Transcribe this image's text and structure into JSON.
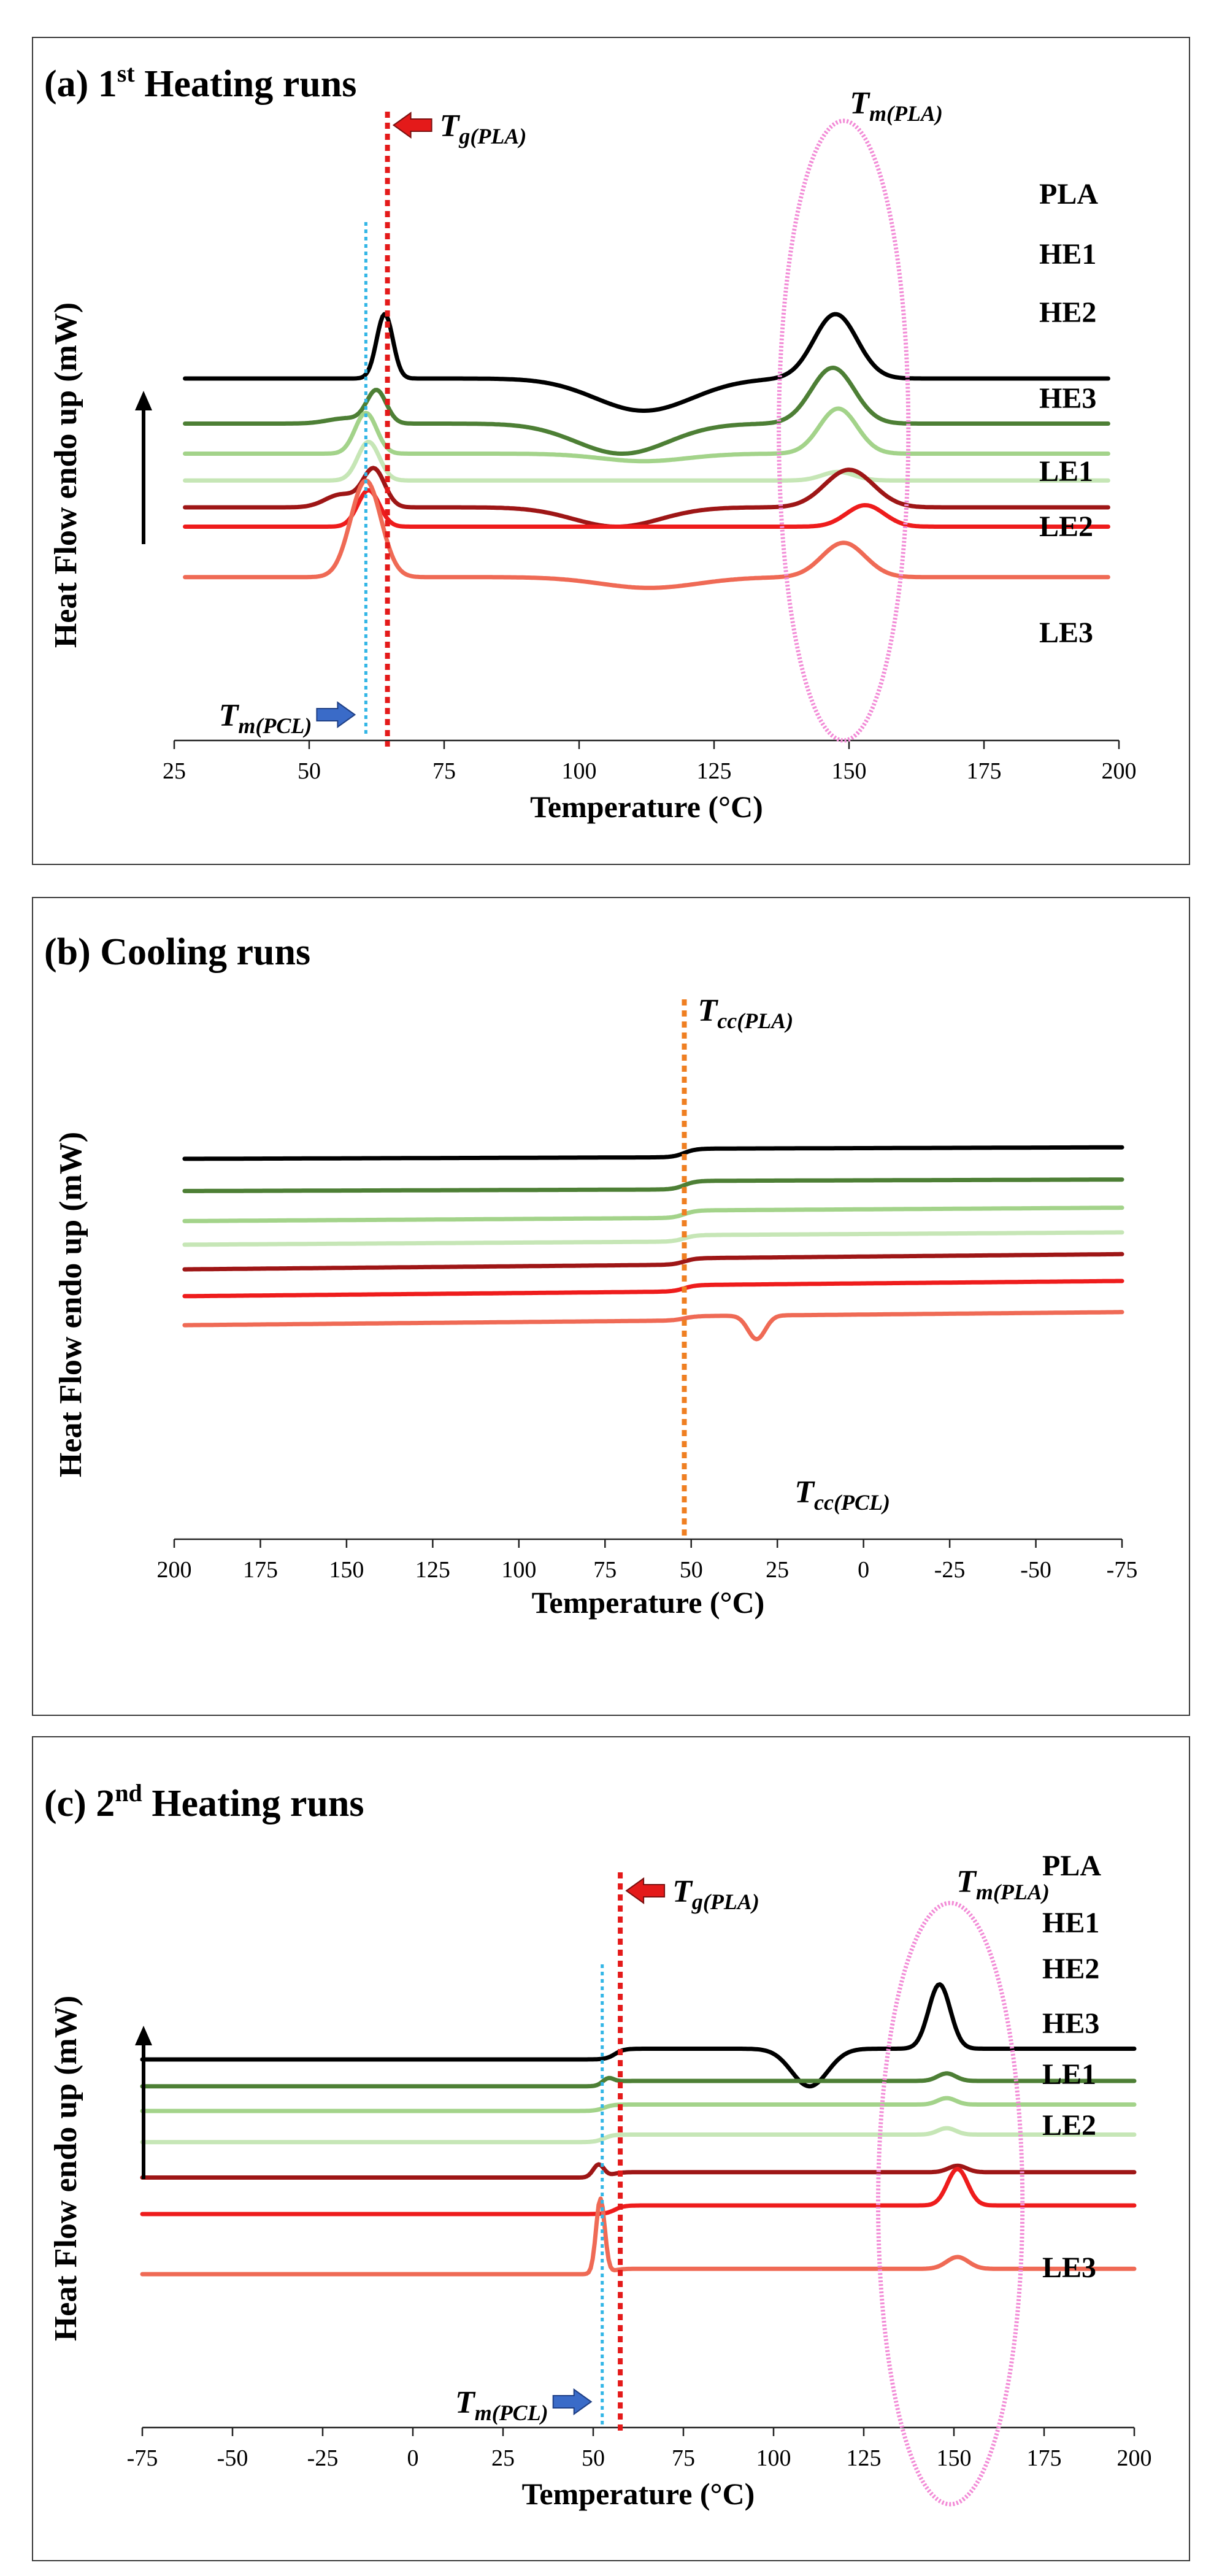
{
  "figure": {
    "background": "#ffffff",
    "border_color": "#3a3a3a"
  },
  "colors": {
    "PLA": "#000000",
    "HE1": "#4d7f35",
    "HE2": "#a3d38a",
    "HE3": "#c6e6b6",
    "LE1": "#9e1616",
    "LE2": "#ee1c1c",
    "LE3": "#ef6a55",
    "tg_line": "#e41a1a",
    "tm_pcl_line": "#33b6e6",
    "tcc_line": "#ef7f22",
    "ellipse": "#f28ad6",
    "arrow_red": "#e41a1a",
    "arrow_blue": "#3a6bc8"
  },
  "chart_data": [
    {
      "type": "line",
      "panel_id": "a",
      "title_prefix": "(a) 1",
      "title_sup": "st",
      "title_suffix": " Heating runs",
      "xlabel": "Temperature (°C)",
      "ylabel": "Heat Flow endo up (mW)",
      "xlim": [
        25,
        200
      ],
      "xticks": [
        25,
        50,
        75,
        100,
        125,
        150,
        175,
        200
      ],
      "grid": false,
      "annotations": {
        "tg_main": "T",
        "tg_sub": "g(PLA)",
        "tm_main": "T",
        "tm_sub": "m(PLA)",
        "tmpcl_main": "T",
        "tmpcl_sub": "m(PCL)"
      },
      "ref_lines": {
        "tg": 64.5,
        "tm_pcl": 60.5
      },
      "ellipse": {
        "x_center": 149,
        "x_halfwidth": 12
      },
      "series": [
        {
          "name": "PLA",
          "label": "PLA",
          "baseline": 100,
          "x0": 27,
          "x1": 198,
          "slope": 0.0,
          "features": [
            {
              "c": 64,
              "h": 60,
              "w": 1.5
            },
            {
              "c": 112,
              "h": -30,
              "w": 9
            },
            {
              "c": 147.5,
              "h": 60,
              "w": 4
            }
          ]
        },
        {
          "name": "HE1",
          "label": "HE1",
          "baseline": 58,
          "x0": 27,
          "x1": 198,
          "slope": 0.0,
          "features": [
            {
              "c": 57,
              "h": 5,
              "w": 3.5
            },
            {
              "c": 62.5,
              "h": 30,
              "w": 1.8
            },
            {
              "c": 108,
              "h": -28,
              "w": 8.5
            },
            {
              "c": 147,
              "h": 52,
              "w": 4
            }
          ]
        },
        {
          "name": "HE2",
          "label": "HE2",
          "baseline": 30,
          "x0": 27,
          "x1": 198,
          "slope": 0.0,
          "features": [
            {
              "c": 60.5,
              "h": 38,
              "w": 2
            },
            {
              "c": 112,
              "h": -7,
              "w": 8
            },
            {
              "c": 148,
              "h": 42,
              "w": 3.5
            }
          ]
        },
        {
          "name": "HE3",
          "label": "HE3",
          "baseline": 5,
          "x0": 27,
          "x1": 198,
          "slope": 0.0,
          "features": [
            {
              "c": 61,
              "h": 36,
              "w": 2
            },
            {
              "c": 148,
              "h": 8,
              "w": 3
            }
          ]
        },
        {
          "name": "LE1",
          "label": "LE1",
          "baseline": -20,
          "x0": 27,
          "x1": 198,
          "slope": 0.0,
          "features": [
            {
              "c": 56,
              "h": 12,
              "w": 3
            },
            {
              "c": 62,
              "h": 35,
              "w": 2
            },
            {
              "c": 107,
              "h": -18,
              "w": 8
            },
            {
              "c": 150,
              "h": 35,
              "w": 4.5
            }
          ]
        },
        {
          "name": "LE2",
          "label": "LE2",
          "baseline": -38,
          "x0": 27,
          "x1": 198,
          "slope": 0.0,
          "features": [
            {
              "c": 61,
              "h": 34,
              "w": 2
            },
            {
              "c": 153,
              "h": 20,
              "w": 3.5
            }
          ]
        },
        {
          "name": "LE3",
          "label": "LE3",
          "baseline": -85,
          "x0": 27,
          "x1": 198,
          "slope": 0.0,
          "features": [
            {
              "c": 60.5,
              "h": 90,
              "w": 2.8
            },
            {
              "c": 113,
              "h": -10,
              "w": 9
            },
            {
              "c": 149,
              "h": 32,
              "w": 4
            }
          ]
        }
      ]
    },
    {
      "type": "line",
      "panel_id": "b",
      "title_prefix": "(b) Cooling runs",
      "title_sup": "",
      "title_suffix": "",
      "xlabel": "Temperature (°C)",
      "ylabel": "Heat Flow endo up (mW)",
      "xlim": [
        200,
        -75
      ],
      "xticks": [
        200,
        175,
        150,
        125,
        100,
        75,
        50,
        25,
        0,
        -25,
        -50,
        -75
      ],
      "grid": false,
      "annotations": {
        "tcc_main": "T",
        "tcc_sub": "cc(PLA)",
        "tccpcl_main": "T",
        "tccpcl_sub": "cc(PCL)"
      },
      "ref_lines": {
        "tcc": 52
      },
      "series": [
        {
          "name": "PLA",
          "baseline": 100,
          "x0": 197,
          "x1": -75,
          "rise_at": 52,
          "rise": 8,
          "slope": 0.01,
          "features": []
        },
        {
          "name": "HE1",
          "baseline": 70,
          "x0": 197,
          "x1": -75,
          "rise_at": 52,
          "rise": 8,
          "slope": 0.01,
          "features": []
        },
        {
          "name": "HE2",
          "baseline": 42,
          "x0": 197,
          "x1": -75,
          "rise_at": 52,
          "rise": 7,
          "slope": 0.02,
          "features": []
        },
        {
          "name": "HE3",
          "baseline": 20,
          "x0": 197,
          "x1": -75,
          "rise_at": 52,
          "rise": 6,
          "slope": 0.02,
          "features": []
        },
        {
          "name": "LE1",
          "baseline": -3,
          "x0": 197,
          "x1": -75,
          "rise_at": 52,
          "rise": 6,
          "slope": 0.03,
          "features": []
        },
        {
          "name": "LE2",
          "baseline": -28,
          "x0": 197,
          "x1": -75,
          "rise_at": 52,
          "rise": 6,
          "slope": 0.03,
          "features": []
        },
        {
          "name": "LE3",
          "baseline": -55,
          "x0": 197,
          "x1": -75,
          "rise_at": 52,
          "rise": 4,
          "slope": 0.03,
          "features": [
            {
              "c": 31,
              "h": -22,
              "w": 2.5
            }
          ]
        }
      ]
    },
    {
      "type": "line",
      "panel_id": "c",
      "title_prefix": "(c) 2",
      "title_sup": "nd",
      "title_suffix": " Heating runs",
      "xlabel": "Temperature (°C)",
      "ylabel": "Heat Flow endo up (mW)",
      "xlim": [
        -75,
        200
      ],
      "xticks": [
        -75,
        -50,
        -25,
        0,
        25,
        50,
        75,
        100,
        125,
        150,
        175,
        200
      ],
      "grid": false,
      "annotations": {
        "tg_main": "T",
        "tg_sub": "g(PLA)",
        "tm_main": "T",
        "tm_sub": "m(PLA)",
        "tmpcl_main": "T",
        "tmpcl_sub": "m(PCL)"
      },
      "ref_lines": {
        "tg": 57.5,
        "tm_pcl": 52.5
      },
      "ellipse": {
        "x_center": 149,
        "x_halfwidth": 20
      },
      "series": [
        {
          "name": "PLA",
          "label": "PLA",
          "baseline": 100,
          "x0": -75,
          "x1": 200,
          "slope": 0.0,
          "step": {
            "at": 56,
            "rise": 10
          },
          "features": [
            {
              "c": 110,
              "h": -35,
              "w": 5
            },
            {
              "c": 146,
              "h": 60,
              "w": 3
            }
          ]
        },
        {
          "name": "HE1",
          "label": "HE1",
          "baseline": 75,
          "x0": -75,
          "x1": 200,
          "slope": 0.0,
          "step": {
            "at": 54,
            "rise": 5
          },
          "features": [
            {
              "c": 54,
              "h": 5,
              "w": 1.5
            },
            {
              "c": 148,
              "h": 7,
              "w": 2.5
            }
          ]
        },
        {
          "name": "HE2",
          "label": "HE2",
          "baseline": 52,
          "x0": -75,
          "x1": 200,
          "slope": 0.0,
          "step": {
            "at": 53,
            "rise": 6
          },
          "features": [
            {
              "c": 148,
              "h": 6,
              "w": 2.5
            }
          ]
        },
        {
          "name": "HE3",
          "label": "HE3",
          "baseline": 23,
          "x0": -75,
          "x1": 200,
          "slope": 0.0,
          "step": {
            "at": 53,
            "rise": 7
          },
          "features": [
            {
              "c": 148,
              "h": 6,
              "w": 2.5
            }
          ]
        },
        {
          "name": "LE1",
          "label": "LE1",
          "baseline": -10,
          "x0": -75,
          "x1": 200,
          "slope": 0.0,
          "step": {
            "at": 55,
            "rise": 5
          },
          "features": [
            {
              "c": 51.5,
              "h": 12,
              "w": 1.5
            },
            {
              "c": 151,
              "h": 6,
              "w": 2.5
            }
          ]
        },
        {
          "name": "LE2",
          "label": "LE2",
          "baseline": -44,
          "x0": -75,
          "x1": 200,
          "slope": 0.0,
          "step": {
            "at": 56,
            "rise": 8
          },
          "features": [
            {
              "c": 151,
              "h": 34,
              "w": 2.8
            }
          ]
        },
        {
          "name": "LE3",
          "label": "LE3",
          "baseline": -100,
          "x0": -75,
          "x1": 200,
          "slope": 0.0,
          "step": {
            "at": 55,
            "rise": 5
          },
          "features": [
            {
              "c": 52,
              "h": 70,
              "w": 1.2
            },
            {
              "c": 151,
              "h": 11,
              "w": 3
            }
          ]
        }
      ]
    }
  ]
}
